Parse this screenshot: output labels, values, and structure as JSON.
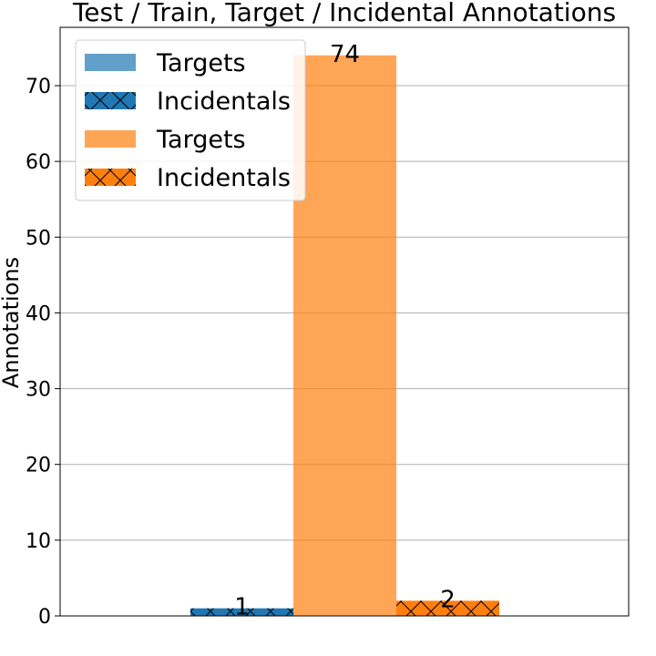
{
  "chart_data": {
    "type": "bar",
    "title": "Test / Train, Target / Incidental Annotations",
    "xlabel": "",
    "ylabel": "Annotations",
    "ylim": [
      0,
      77.7
    ],
    "yticks": [
      0,
      10,
      20,
      30,
      40,
      50,
      60,
      70
    ],
    "grid": "y",
    "legend_position": "upper-left",
    "groups": [
      "Test",
      "Train"
    ],
    "series": [
      {
        "name": "Targets",
        "group": "Test",
        "kind": "Targets",
        "values": [
          0
        ],
        "color": "#1f77b4",
        "alpha": 0.7,
        "hatch": false,
        "label": ""
      },
      {
        "name": "Incidentals",
        "group": "Test",
        "kind": "Incidentals",
        "values": [
          1
        ],
        "color": "#1f77b4",
        "alpha": 1.0,
        "hatch": true,
        "label": "1"
      },
      {
        "name": "Targets",
        "group": "Train",
        "kind": "Targets",
        "values": [
          74
        ],
        "color": "#ff7f0e",
        "alpha": 0.7,
        "hatch": false,
        "label": "74"
      },
      {
        "name": "Incidentals",
        "group": "Train",
        "kind": "Incidentals",
        "values": [
          2
        ],
        "color": "#ff7f0e",
        "alpha": 1.0,
        "hatch": true,
        "label": "2"
      }
    ],
    "legend": [
      {
        "label": "Targets",
        "color": "#1f77b4",
        "alpha": 0.7,
        "hatch": false
      },
      {
        "label": "Incidentals",
        "color": "#1f77b4",
        "alpha": 1.0,
        "hatch": true
      },
      {
        "label": "Targets",
        "color": "#ff7f0e",
        "alpha": 0.7,
        "hatch": false
      },
      {
        "label": "Incidentals",
        "color": "#ff7f0e",
        "alpha": 1.0,
        "hatch": true
      }
    ]
  }
}
